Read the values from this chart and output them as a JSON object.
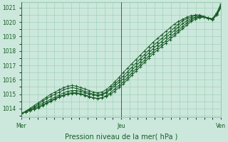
{
  "title": "",
  "xlabel": "Pression niveau de la mer( hPa )",
  "ylabel": "",
  "bg_color": "#cce8dc",
  "grid_color": "#99ccb3",
  "line_color": "#1a5c28",
  "xlim": [
    0,
    47
  ],
  "ylim": [
    1013.4,
    1021.4
  ],
  "yticks": [
    1014,
    1015,
    1016,
    1017,
    1018,
    1019,
    1020,
    1021
  ],
  "xtick_positions": [
    0,
    23.5,
    47
  ],
  "xtick_labels": [
    "Mer",
    "Jeu",
    "Ven"
  ],
  "vline_positions": [
    0,
    23.5,
    47
  ],
  "series": [
    [
      1013.65,
      1013.75,
      1013.85,
      1013.95,
      1014.05,
      1014.2,
      1014.35,
      1014.5,
      1014.65,
      1014.8,
      1014.9,
      1015.0,
      1015.05,
      1015.05,
      1015.0,
      1014.9,
      1014.8,
      1014.75,
      1014.7,
      1014.75,
      1014.85,
      1015.0,
      1015.2,
      1015.45,
      1015.7,
      1016.0,
      1016.3,
      1016.6,
      1016.9,
      1017.2,
      1017.5,
      1017.8,
      1018.05,
      1018.3,
      1018.55,
      1018.8,
      1019.05,
      1019.3,
      1019.55,
      1019.8,
      1020.05,
      1020.2,
      1020.3,
      1020.35,
      1020.3,
      1020.2,
      1020.5,
      1021.0
    ],
    [
      1013.65,
      1013.75,
      1013.85,
      1013.95,
      1014.1,
      1014.25,
      1014.4,
      1014.55,
      1014.7,
      1014.85,
      1014.95,
      1015.05,
      1015.1,
      1015.1,
      1015.05,
      1014.95,
      1014.85,
      1014.75,
      1014.7,
      1014.75,
      1014.9,
      1015.1,
      1015.35,
      1015.6,
      1015.85,
      1016.15,
      1016.45,
      1016.75,
      1017.05,
      1017.35,
      1017.65,
      1017.95,
      1018.2,
      1018.45,
      1018.7,
      1018.95,
      1019.2,
      1019.45,
      1019.7,
      1019.95,
      1020.15,
      1020.3,
      1020.35,
      1020.35,
      1020.25,
      1020.15,
      1020.5,
      1021.05
    ],
    [
      1013.65,
      1013.75,
      1013.9,
      1014.05,
      1014.2,
      1014.35,
      1014.5,
      1014.65,
      1014.8,
      1014.95,
      1015.1,
      1015.2,
      1015.25,
      1015.25,
      1015.2,
      1015.1,
      1015.0,
      1014.95,
      1014.9,
      1014.95,
      1015.1,
      1015.3,
      1015.55,
      1015.8,
      1016.05,
      1016.35,
      1016.65,
      1016.95,
      1017.25,
      1017.55,
      1017.85,
      1018.15,
      1018.4,
      1018.65,
      1018.9,
      1019.15,
      1019.4,
      1019.65,
      1019.9,
      1020.1,
      1020.25,
      1020.35,
      1020.4,
      1020.35,
      1020.25,
      1020.2,
      1020.55,
      1021.1
    ],
    [
      1013.65,
      1013.8,
      1013.95,
      1014.1,
      1014.3,
      1014.5,
      1014.7,
      1014.85,
      1015.0,
      1015.15,
      1015.3,
      1015.4,
      1015.45,
      1015.4,
      1015.3,
      1015.2,
      1015.1,
      1015.0,
      1014.95,
      1015.0,
      1015.15,
      1015.4,
      1015.7,
      1015.95,
      1016.25,
      1016.55,
      1016.85,
      1017.15,
      1017.45,
      1017.75,
      1018.05,
      1018.35,
      1018.6,
      1018.85,
      1019.1,
      1019.35,
      1019.6,
      1019.85,
      1020.1,
      1020.25,
      1020.35,
      1020.45,
      1020.45,
      1020.35,
      1020.25,
      1020.2,
      1020.6,
      1021.2
    ],
    [
      1013.65,
      1013.8,
      1014.0,
      1014.2,
      1014.4,
      1014.6,
      1014.8,
      1015.0,
      1015.15,
      1015.3,
      1015.45,
      1015.55,
      1015.6,
      1015.55,
      1015.45,
      1015.35,
      1015.25,
      1015.15,
      1015.1,
      1015.15,
      1015.3,
      1015.55,
      1015.85,
      1016.15,
      1016.5,
      1016.8,
      1017.1,
      1017.4,
      1017.7,
      1018.0,
      1018.3,
      1018.6,
      1018.85,
      1019.1,
      1019.35,
      1019.6,
      1019.85,
      1020.05,
      1020.2,
      1020.35,
      1020.45,
      1020.5,
      1020.5,
      1020.4,
      1020.3,
      1020.25,
      1020.65,
      1021.3
    ]
  ]
}
